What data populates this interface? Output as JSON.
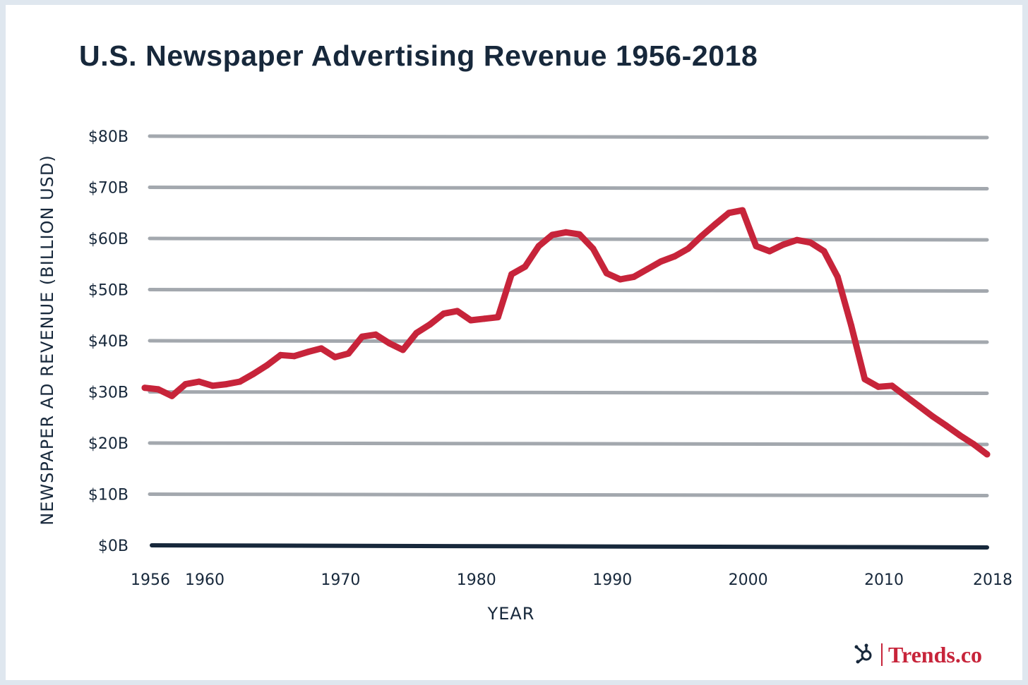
{
  "chart_data": {
    "type": "line",
    "title": "U.S. Newspaper Advertising Revenue 1956-2018",
    "xlabel": "YEAR",
    "ylabel": "NEWSPAPER AD REVENUE (BILLION USD)",
    "xlim": [
      1956,
      2018
    ],
    "ylim": [
      0,
      80
    ],
    "x_ticks": [
      1956,
      1960,
      1970,
      1980,
      1990,
      2000,
      2010,
      2018
    ],
    "y_ticks": [
      0,
      10,
      20,
      30,
      40,
      50,
      60,
      70,
      80
    ],
    "y_tick_labels": [
      "$0B",
      "$10B",
      "$20B",
      "$30B",
      "$40B",
      "$50B",
      "$60B",
      "$70B",
      "$80B"
    ],
    "grid": true,
    "line_color": "#c7243a",
    "series": [
      {
        "x": [
          1956,
          1957,
          1958,
          1959,
          1960,
          1961,
          1962,
          1963,
          1964,
          1965,
          1966,
          1967,
          1968,
          1969,
          1970,
          1971,
          1972,
          1973,
          1974,
          1975,
          1976,
          1977,
          1978,
          1979,
          1980,
          1981,
          1982,
          1983,
          1984,
          1985,
          1986,
          1987,
          1988,
          1989,
          1990,
          1991,
          1992,
          1993,
          1994,
          1995,
          1996,
          1997,
          1998,
          1999,
          2000,
          2001,
          2002,
          2003,
          2004,
          2005,
          2006,
          2007,
          2008,
          2009,
          2010,
          2011,
          2012,
          2013,
          2014,
          2015,
          2016,
          2017,
          2018
        ],
        "values": [
          30.8,
          30.5,
          29.2,
          31.5,
          32.0,
          31.2,
          31.5,
          32.0,
          33.5,
          35.2,
          37.2,
          37.0,
          37.8,
          38.5,
          36.8,
          37.5,
          40.8,
          41.2,
          39.5,
          38.2,
          41.5,
          43.2,
          45.3,
          45.8,
          44.0,
          44.3,
          44.6,
          53.0,
          54.5,
          58.5,
          60.7,
          61.2,
          60.8,
          58.0,
          53.2,
          52.0,
          52.5,
          54.0,
          55.5,
          56.5,
          58.0,
          60.5,
          62.8,
          65.0,
          65.5,
          58.5,
          57.5,
          58.8,
          59.7,
          59.2,
          57.5,
          52.5,
          43.0,
          32.5,
          31.0,
          31.2,
          29.2,
          27.2,
          25.2,
          23.4,
          21.5,
          19.8,
          17.8
        ]
      }
    ]
  },
  "brand": {
    "logo_icon": "hubspot-sprocket-icon",
    "name": "Trends.co"
  }
}
